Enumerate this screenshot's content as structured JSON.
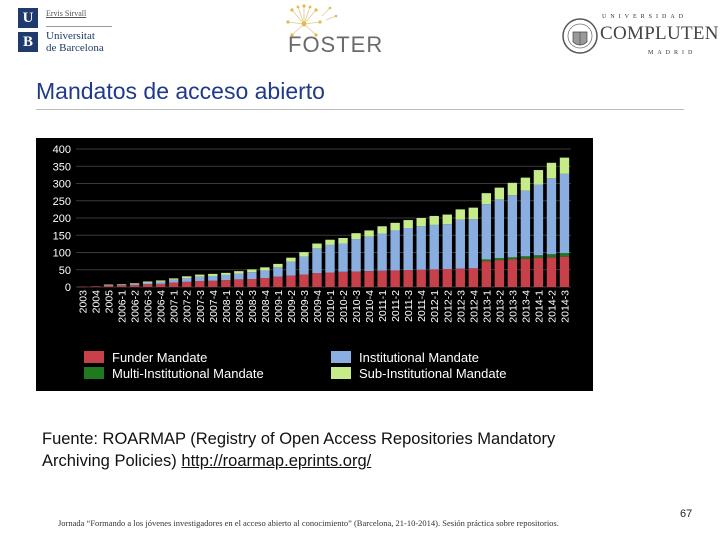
{
  "logos": {
    "ub": {
      "mark_top": "U",
      "mark_bottom": "B",
      "small_text": "Ervis Sirvall",
      "name": "Universitat\nde Barcelona"
    },
    "foster": {
      "text": "FOSTER"
    },
    "ucm": {
      "top": "UNIVERSIDAD",
      "name": "COMPLUTENSE",
      "bottom": "MADRID"
    }
  },
  "title": "Mandatos de acceso abierto",
  "source": {
    "line1": "Fuente: ROARMAP (Registry of Open Access Repositories Mandatory",
    "line2_prefix": "Archiving Policies) ",
    "link": "http://roarmap.eprints.org/"
  },
  "footer": "Jornada “Formando a los jóvenes investigadores en el acceso abierto al conocimiento” (Barcelona, 21-10-2014). Sesión práctica sobre repositorios.",
  "page_number": "67",
  "colors": {
    "funder": "#c8404a",
    "multi": "#1f7a1f",
    "institutional": "#8aaee0",
    "sub": "#c6ec8a",
    "chart_bg": "#000000",
    "title": "#1f3a8c"
  },
  "chart_data": {
    "type": "bar",
    "stacked": true,
    "categories": [
      "2003",
      "2004",
      "2005",
      "2006-1",
      "2006-2",
      "2006-3",
      "2006-4",
      "2007-1",
      "2007-2",
      "2007-3",
      "2007-4",
      "2008-1",
      "2008-2",
      "2008-3",
      "2008-4",
      "2009-1",
      "2009-2",
      "2009-3",
      "2009-4",
      "2010-1",
      "2010-2",
      "2010-3",
      "2010-4",
      "2011-1",
      "2011-2",
      "2011-3",
      "2011-4",
      "2012-1",
      "2012-2",
      "2012-3",
      "2012-4",
      "2013-1",
      "2013-2",
      "2013-3",
      "2013-4",
      "2014-1",
      "2014-2",
      "2014-3"
    ],
    "series": [
      {
        "name": "Funder Mandate",
        "color": "#c8404a",
        "values": [
          1,
          2,
          4,
          5,
          6,
          8,
          9,
          13,
          15,
          17,
          18,
          20,
          22,
          23,
          26,
          30,
          33,
          36,
          40,
          42,
          44,
          45,
          46,
          47,
          48,
          49,
          50,
          51,
          52,
          53,
          54,
          75,
          78,
          80,
          82,
          84,
          86,
          88
        ]
      },
      {
        "name": "Multi-Institutional Mandate",
        "color": "#1f7a1f",
        "values": [
          0,
          0,
          0,
          0,
          0,
          0,
          0,
          0,
          0,
          0,
          0,
          0,
          0,
          0,
          0,
          0,
          0,
          0,
          0,
          0,
          0,
          0,
          0,
          0,
          0,
          0,
          0,
          0,
          0,
          0,
          0,
          5,
          6,
          6,
          7,
          8,
          9,
          10
        ]
      },
      {
        "name": "Institutional Mandate",
        "color": "#8aaee0",
        "values": [
          0,
          0,
          2,
          2,
          3,
          5,
          6,
          8,
          11,
          13,
          14,
          15,
          17,
          20,
          22,
          27,
          40,
          52,
          72,
          80,
          82,
          94,
          100,
          108,
          116,
          122,
          126,
          129,
          130,
          142,
          143,
          160,
          170,
          180,
          190,
          205,
          220,
          230
        ]
      },
      {
        "name": "Sub-Institutional Mandate",
        "color": "#c6ec8a",
        "values": [
          0,
          0,
          1,
          1,
          2,
          3,
          4,
          4,
          5,
          6,
          6,
          6,
          7,
          8,
          9,
          10,
          12,
          13,
          14,
          15,
          16,
          17,
          18,
          21,
          22,
          23,
          24,
          26,
          28,
          30,
          33,
          32,
          34,
          36,
          38,
          42,
          45,
          47
        ]
      }
    ],
    "ylim": [
      0,
      400
    ],
    "yticks": [
      0,
      50,
      100,
      150,
      200,
      250,
      300,
      350,
      400
    ],
    "grid": true,
    "legend": "bottom",
    "legend_order": [
      "Funder Mandate",
      "Institutional Mandate",
      "Multi-Institutional Mandate",
      "Sub-Institutional Mandate"
    ]
  }
}
